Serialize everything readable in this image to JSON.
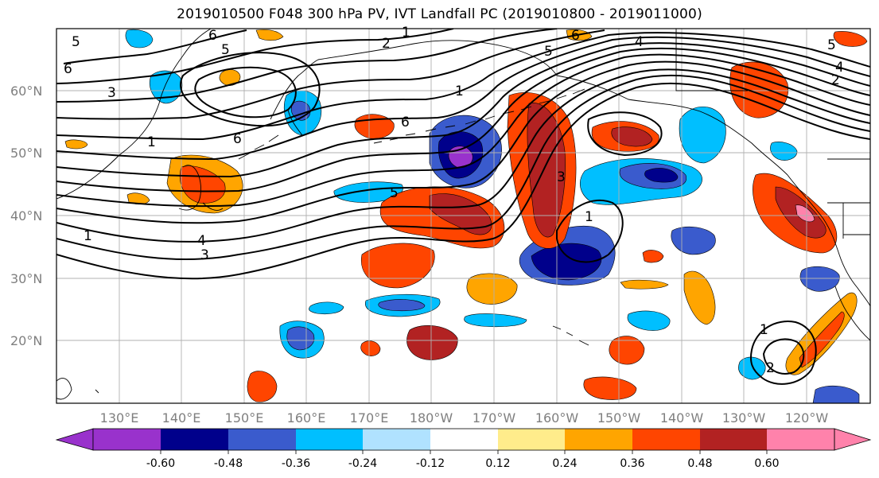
{
  "title": "2019010500 F048 300 hPa PV, IVT Landfall PC (2019010800 - 2019011000)",
  "lat_labels": [
    "20°N",
    "30°N",
    "40°N",
    "50°N",
    "60°N"
  ],
  "lon_labels": [
    "130°E",
    "140°E",
    "150°E",
    "160°E",
    "170°E",
    "180°W",
    "170°W",
    "160°W",
    "150°W",
    "140°W",
    "130°W",
    "120°W"
  ],
  "colorbar": {
    "colors": [
      "#9932cc",
      "#00008b",
      "#3a5bcd",
      "#00bfff",
      "#b0e2ff",
      "#ffffff",
      "#ffec8b",
      "#ffa500",
      "#ff4500",
      "#b22222",
      "#ff82ab"
    ],
    "labels": [
      "-0.60",
      "-0.48",
      "-0.36",
      "-0.24",
      "-0.12",
      "0.12",
      "0.24",
      "0.36",
      "0.48",
      "0.60"
    ]
  },
  "contour_labels": [
    "1",
    "2",
    "3",
    "4",
    "5",
    "6"
  ]
}
